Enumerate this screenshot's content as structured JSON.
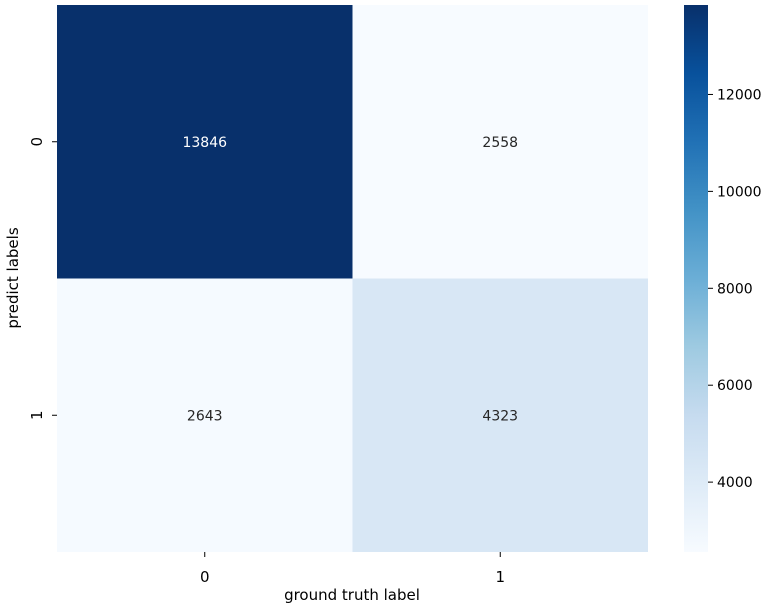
{
  "chart_data": {
    "type": "heatmap",
    "title": "",
    "xlabel": "ground truth label",
    "ylabel": "predict labels",
    "x_categories": [
      "0",
      "1"
    ],
    "y_categories": [
      "0",
      "1"
    ],
    "values": [
      [
        13846,
        2558
      ],
      [
        2643,
        4323
      ]
    ],
    "colormap": "Blues",
    "colorbar": {
      "min": 2558,
      "max": 13846,
      "ticks": [
        4000,
        6000,
        8000,
        10000,
        12000
      ],
      "tick_labels": [
        "4000",
        "6000",
        "8000",
        "10000",
        "12000"
      ]
    },
    "colors": {
      "low": "#f7fbff",
      "high": "#08306b"
    }
  }
}
